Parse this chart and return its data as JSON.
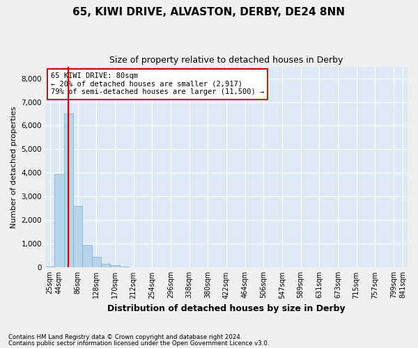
{
  "title": "65, KIWI DRIVE, ALVASTON, DERBY, DE24 8NN",
  "subtitle": "Size of property relative to detached houses in Derby",
  "xlabel": "Distribution of detached houses by size in Derby",
  "ylabel": "Number of detached properties",
  "bar_color": "#b8d4ea",
  "bar_edge_color": "#7aafd4",
  "annotation_box_color": "#ffffff",
  "annotation_border_color": "#cc0000",
  "vline_color": "#cc0000",
  "background_color": "#ddeaf5",
  "fig_background": "#f0f0f0",
  "grid_color": "#ffffff",
  "footer_line1": "Contains HM Land Registry data © Crown copyright and database right 2024.",
  "footer_line2": "Contains public sector information licensed under the Open Government Licence v3.0.",
  "annotation_title": "65 KIWI DRIVE: 80sqm",
  "annotation_line2": "← 20% of detached houses are smaller (2,917)",
  "annotation_line3": "79% of semi-detached houses are larger (11,500) →",
  "bar_heights": [
    50,
    3950,
    6500,
    2600,
    950,
    450,
    150,
    100,
    50,
    10,
    5,
    2,
    1,
    0,
    0,
    0,
    0,
    0,
    0,
    0,
    0,
    0,
    0,
    0,
    0,
    0,
    0,
    0,
    0,
    0,
    0,
    0,
    0,
    0,
    0,
    0,
    0,
    0,
    0
  ],
  "n_bars": 39,
  "vline_x": 2.0,
  "ylim": [
    0,
    8500
  ],
  "yticks": [
    0,
    1000,
    2000,
    3000,
    4000,
    5000,
    6000,
    7000,
    8000
  ],
  "xtick_positions": [
    0,
    1,
    3,
    5,
    7,
    9,
    11,
    13,
    15,
    17,
    19,
    21,
    23,
    25,
    27,
    29,
    31,
    33,
    35,
    37,
    38
  ],
  "xtick_labels": [
    "25sqm",
    "44sqm",
    "86sqm",
    "128sqm",
    "170sqm",
    "212sqm",
    "254sqm",
    "296sqm",
    "338sqm",
    "380sqm",
    "422sqm",
    "464sqm",
    "506sqm",
    "547sqm",
    "589sqm",
    "631sqm",
    "673sqm",
    "715sqm",
    "757sqm",
    "799sqm",
    "841sqm"
  ]
}
